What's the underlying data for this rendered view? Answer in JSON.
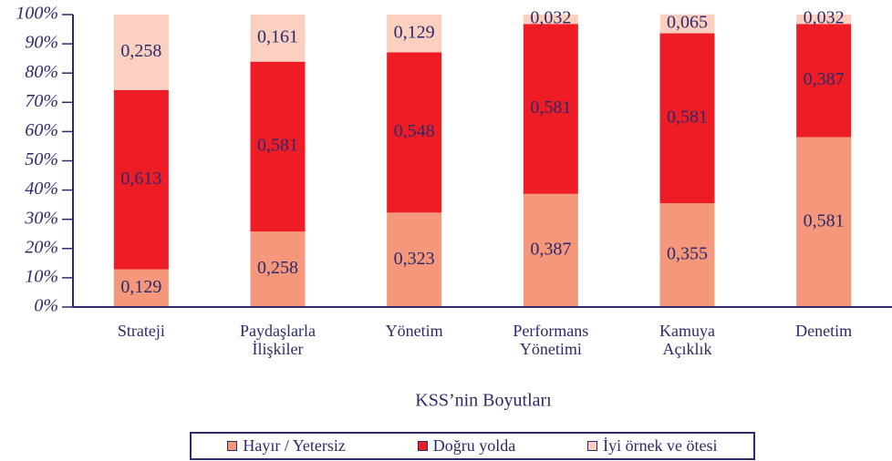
{
  "chart_data": {
    "type": "stacked_bar",
    "x_label": "KSS’nin Boyutları",
    "categories": [
      "Strateji",
      "Paydaşlarla İlişkiler",
      "Yönetim",
      "Performans Yönetimi",
      "Kamuya Açıklık",
      "Denetim"
    ],
    "series": [
      {
        "name": "Hayır / Yetersiz",
        "color": "#f4977a",
        "values": [
          12.9,
          25.8,
          32.3,
          38.7,
          35.5,
          58.1
        ],
        "value_labels": [
          "0,129",
          "0,258",
          "0,323",
          "0,387",
          "0,355",
          "0,581"
        ]
      },
      {
        "name": "Doğru yolda",
        "color": "#ee1c25",
        "values": [
          61.3,
          58.1,
          54.8,
          58.1,
          58.1,
          38.7
        ],
        "value_labels": [
          "0,613",
          "0,581",
          "0,548",
          "0,581",
          "0,581",
          "0,387"
        ]
      },
      {
        "name": "İyi örnek ve ötesi",
        "color": "#fcd0c0",
        "values": [
          25.8,
          16.1,
          12.9,
          3.2,
          6.5,
          3.2
        ],
        "value_labels": [
          "0,258",
          "0,161",
          "0,129",
          "0,032",
          "0,065",
          "0,032"
        ]
      }
    ],
    "ylim": [
      0,
      100
    ],
    "yticks": [
      {
        "value": 0,
        "label": "0%"
      },
      {
        "value": 10,
        "label": "10%"
      },
      {
        "value": 20,
        "label": "20%"
      },
      {
        "value": 30,
        "label": "30%"
      },
      {
        "value": 40,
        "label": "40%"
      },
      {
        "value": 50,
        "label": "50%"
      },
      {
        "value": 60,
        "label": "60%"
      },
      {
        "value": 70,
        "label": "70%"
      },
      {
        "value": 80,
        "label": "80%"
      },
      {
        "value": 90,
        "label": "90%"
      },
      {
        "value": 100,
        "label": "100%"
      }
    ],
    "legend": "bottom"
  }
}
